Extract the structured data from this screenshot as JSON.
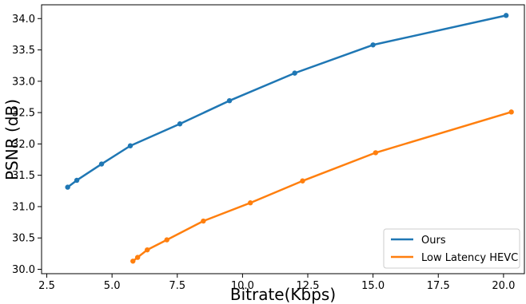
{
  "chart_data": {
    "type": "line",
    "title": "",
    "xlabel": "Bitrate(Kbps)",
    "ylabel": "PSNR (dB)",
    "xlim": [
      2.3,
      20.8
    ],
    "ylim": [
      29.93,
      34.22
    ],
    "xticks": [
      2.5,
      5.0,
      7.5,
      10.0,
      12.5,
      15.0,
      17.5,
      20.0
    ],
    "xtick_labels": [
      "2.5",
      "5.0",
      "7.5",
      "10.0",
      "12.5",
      "15.0",
      "17.5",
      "20.0"
    ],
    "yticks": [
      30.0,
      30.5,
      31.0,
      31.5,
      32.0,
      32.5,
      33.0,
      33.5,
      34.0
    ],
    "ytick_labels": [
      "30.0",
      "30.5",
      "31.0",
      "31.5",
      "32.0",
      "32.5",
      "33.0",
      "33.5",
      "34.0"
    ],
    "grid": false,
    "legend_position": "bottom-right",
    "series": [
      {
        "name": "Ours",
        "color": "#1f77b4",
        "x": [
          3.3,
          3.65,
          4.6,
          5.7,
          7.6,
          9.5,
          12.0,
          15.0,
          20.1
        ],
        "y": [
          31.31,
          31.42,
          31.68,
          31.97,
          32.32,
          32.69,
          33.13,
          33.58,
          34.05
        ]
      },
      {
        "name": "Low Latency HEVC",
        "color": "#ff7f0e",
        "x": [
          5.8,
          5.98,
          6.35,
          7.1,
          8.5,
          10.3,
          12.3,
          15.1,
          20.3
        ],
        "y": [
          30.13,
          30.19,
          30.31,
          30.47,
          30.77,
          31.06,
          31.41,
          31.86,
          32.51
        ]
      }
    ]
  }
}
